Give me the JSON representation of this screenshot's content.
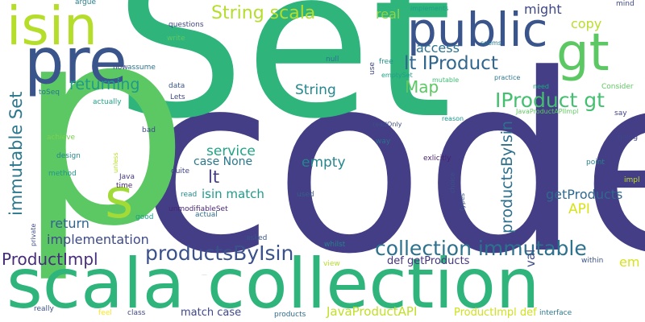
{
  "words": [
    {
      "text": "code",
      "color": "#433e85"
    },
    {
      "text": "Set",
      "color": "#2fb47c"
    },
    {
      "text": "p",
      "color": "#5cc863"
    },
    {
      "text": "scala collection",
      "color": "#2fb47c"
    },
    {
      "text": "pre",
      "color": "#3a548c"
    },
    {
      "text": "public",
      "color": "#3a548c"
    },
    {
      "text": "isin",
      "color": "#b5de2b"
    },
    {
      "text": "gt",
      "color": "#5cc863"
    },
    {
      "text": "s",
      "color": "#a2da37"
    },
    {
      "text": "productsByIsin",
      "color": "#3b518b"
    },
    {
      "text": "collection immutable",
      "color": "#2c728e"
    },
    {
      "text": "IProduct gt",
      "color": "#44bf70"
    },
    {
      "text": "lt IProduct",
      "color": "#31668e"
    },
    {
      "text": "String scala",
      "color": "#b5de2b"
    },
    {
      "text": "immutable Set",
      "color": "#2a788e"
    },
    {
      "text": "returning",
      "color": "#1f9a8a"
    },
    {
      "text": "Map",
      "color": "#5cc863"
    },
    {
      "text": "ProductImpl",
      "color": "#472c7a"
    },
    {
      "text": "productsByIsin",
      "color": "#2d718e"
    },
    {
      "text": "service",
      "color": "#20a386"
    },
    {
      "text": "implementation",
      "color": "#3e4a89"
    },
    {
      "text": "getProducts",
      "color": "#31688e"
    },
    {
      "text": "return",
      "color": "#32658e"
    },
    {
      "text": "lt",
      "color": "#433d84"
    },
    {
      "text": "empty",
      "color": "#24868e"
    },
    {
      "text": "copy",
      "color": "#b8de29"
    },
    {
      "text": "access",
      "color": "#2c728e"
    },
    {
      "text": "might",
      "color": "#3f4889"
    },
    {
      "text": "String",
      "color": "#23898e"
    },
    {
      "text": "API",
      "color": "#d8e219"
    },
    {
      "text": "JavaProductAPI",
      "color": "#c0df25"
    },
    {
      "text": "isin match",
      "color": "#1e9b8a"
    },
    {
      "text": "case None",
      "color": "#29798e"
    },
    {
      "text": "real",
      "color": "#8ed645"
    },
    {
      "text": "def getProducts",
      "color": "#453581"
    },
    {
      "text": "em",
      "color": "#d8e219"
    },
    {
      "text": "val",
      "color": "#3d4d8a"
    },
    {
      "text": "match case",
      "color": "#3f4788"
    },
    {
      "text": "ProductImpl def",
      "color": "#d0e11c"
    },
    {
      "text": "questions",
      "color": "#404688"
    },
    {
      "text": "argue",
      "color": "#277f8e"
    },
    {
      "text": "mind",
      "color": "#3e4a89"
    },
    {
      "text": "implements",
      "color": "#1fa088"
    },
    {
      "text": "write",
      "color": "#5ec962"
    },
    {
      "text": "seems",
      "color": "#2a788e"
    },
    {
      "text": "null",
      "color": "#2c738e"
    },
    {
      "text": "free",
      "color": "#21918c"
    },
    {
      "text": "use",
      "color": "#3f4788"
    },
    {
      "text": "emptySet",
      "color": "#1fa187"
    },
    {
      "text": "Consider",
      "color": "#5ec962"
    },
    {
      "text": "now",
      "color": "#3f4889"
    },
    {
      "text": "assume",
      "color": "#2c728e"
    },
    {
      "text": "data",
      "color": "#39558c"
    },
    {
      "text": "Lets",
      "color": "#3e4989"
    },
    {
      "text": "toSeq",
      "color": "#2a768e"
    },
    {
      "text": "actually",
      "color": "#20a486"
    },
    {
      "text": "practice",
      "color": "#2b748e"
    },
    {
      "text": "need",
      "color": "#22a785"
    },
    {
      "text": "mutable",
      "color": "#3dbc74"
    },
    {
      "text": "JavaProductAPIImpl",
      "color": "#5ec962"
    },
    {
      "text": "say",
      "color": "#404588"
    },
    {
      "text": "bad",
      "color": "#3e4c8a"
    },
    {
      "text": "readOnly",
      "color": "#3c4f8a"
    },
    {
      "text": "reason",
      "color": "#1f968b"
    },
    {
      "text": "achieve",
      "color": "#7ad151"
    },
    {
      "text": "way",
      "color": "#2e6e8e"
    },
    {
      "text": "going",
      "color": "#404588"
    },
    {
      "text": "design",
      "color": "#24868e"
    },
    {
      "text": "unless",
      "color": "#b5de2b"
    },
    {
      "text": "exlicitly",
      "color": "#481f70"
    },
    {
      "text": "point",
      "color": "#26828e"
    },
    {
      "text": "method",
      "color": "#1f978b"
    },
    {
      "text": "Java",
      "color": "#443983"
    },
    {
      "text": "quite",
      "color": "#414487"
    },
    {
      "text": "choice",
      "color": "#3b528b"
    },
    {
      "text": "time",
      "color": "#482475"
    },
    {
      "text": "impl",
      "color": "#c2df23"
    },
    {
      "text": "read",
      "color": "#23898e"
    },
    {
      "text": "used",
      "color": "#355f8d"
    },
    {
      "text": "types",
      "color": "#39568c"
    },
    {
      "text": "unmodifiableSet",
      "color": "#482677"
    },
    {
      "text": "good",
      "color": "#1f9e89"
    },
    {
      "text": "actual",
      "color": "#2e6e8e"
    },
    {
      "text": "private",
      "color": "#3e4a89"
    },
    {
      "text": "asked",
      "color": "#3a538b"
    },
    {
      "text": "view",
      "color": "#b5de2b"
    },
    {
      "text": "whilst",
      "color": "#27808e"
    },
    {
      "text": "within",
      "color": "#3a538b"
    },
    {
      "text": "really",
      "color": "#3b528b"
    },
    {
      "text": "feel",
      "color": "#fde725"
    },
    {
      "text": "class",
      "color": "#3f4788"
    },
    {
      "text": "products",
      "color": "#2f6b8e"
    },
    {
      "text": "interface",
      "color": "#2a788e"
    },
    {
      "text": "—",
      "color": "#cccccc"
    }
  ]
}
